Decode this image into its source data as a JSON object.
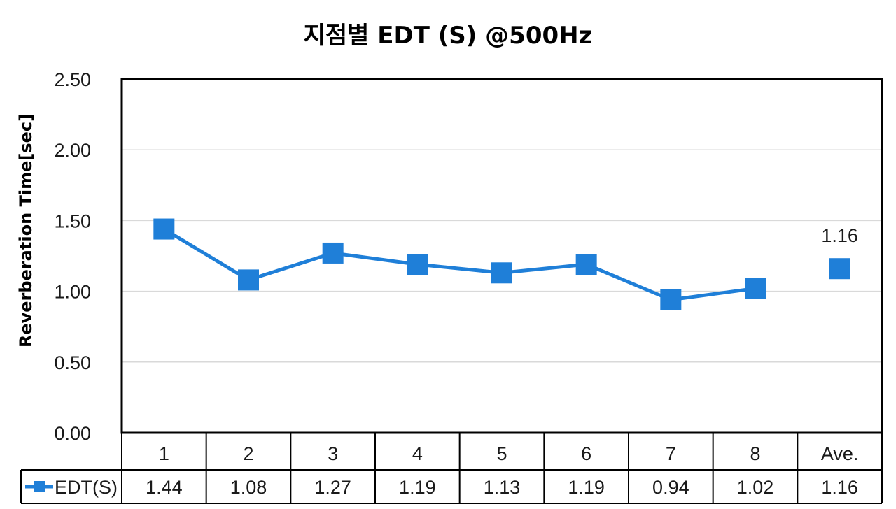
{
  "chart_data": {
    "type": "line",
    "title": "지점별 EDT (S) @500Hz",
    "ylabel": "Reverberation Time[sec]",
    "xlabel": "",
    "ylim": [
      0,
      2.5
    ],
    "yticks": [
      "0.00",
      "0.50",
      "1.00",
      "1.50",
      "2.00",
      "2.50"
    ],
    "grid": true,
    "categories": [
      "1",
      "2",
      "3",
      "4",
      "5",
      "6",
      "7",
      "8",
      "Ave."
    ],
    "series": [
      {
        "name": "EDT(S)",
        "color": "#1f7fd8",
        "values": [
          1.44,
          1.08,
          1.27,
          1.19,
          1.13,
          1.19,
          0.94,
          1.02,
          1.16
        ],
        "table_values": [
          "1.44",
          "1.08",
          "1.27",
          "1.19",
          "1.13",
          "1.19",
          "0.94",
          "1.02",
          "1.16"
        ],
        "line_connects_first_n": 8
      }
    ],
    "annotations": [
      {
        "category": "Ave.",
        "text": "1.16"
      }
    ],
    "data_table": true
  }
}
